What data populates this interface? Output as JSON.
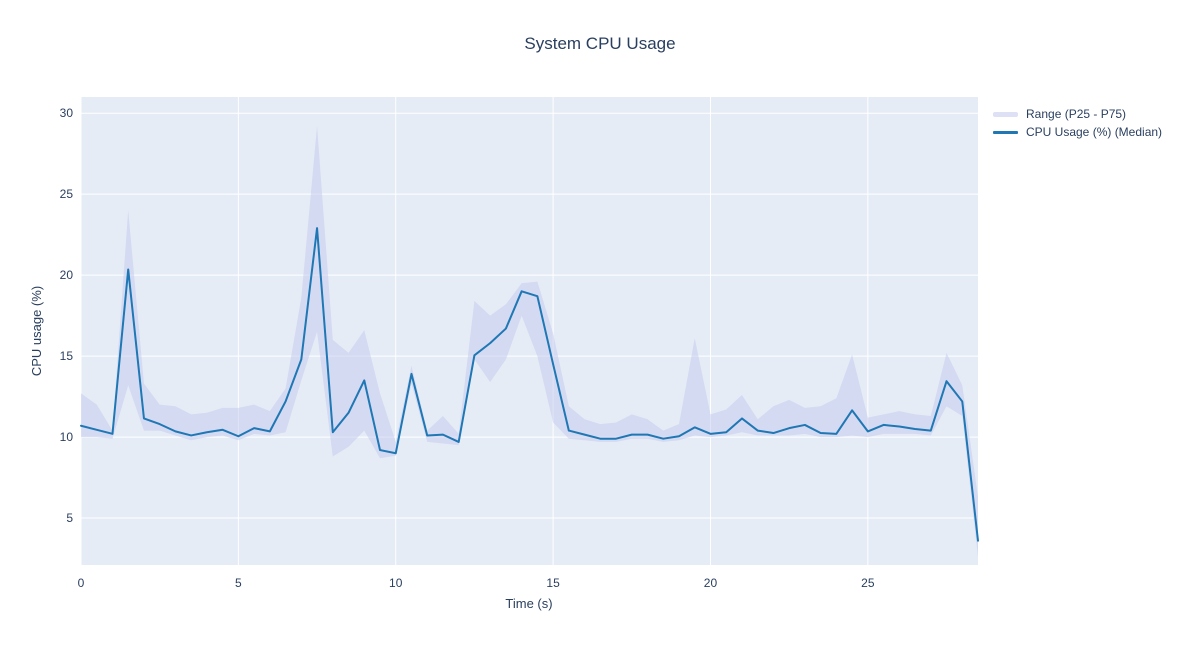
{
  "title": "System CPU Usage",
  "chart_data": {
    "type": "line",
    "title": "System CPU Usage",
    "xlabel": "Time (s)",
    "ylabel": "CPU usage (%)",
    "xlim": [
      0,
      28.5
    ],
    "ylim": [
      2.1,
      31.0
    ],
    "xticks": [
      0,
      5,
      10,
      15,
      20,
      25
    ],
    "yticks": [
      5,
      10,
      15,
      20,
      25,
      30
    ],
    "grid": true,
    "legend_position": "outside-right-top",
    "x": [
      0,
      0.5,
      1,
      1.5,
      2,
      2.5,
      3,
      3.5,
      4,
      4.5,
      5,
      5.5,
      6,
      6.5,
      7,
      7.5,
      8,
      8.5,
      9,
      9.5,
      10,
      10.5,
      11,
      11.5,
      12,
      12.5,
      13,
      13.5,
      14,
      14.5,
      15,
      15.5,
      16,
      16.5,
      17,
      17.5,
      18,
      18.5,
      19,
      19.5,
      20,
      20.5,
      21,
      21.5,
      22,
      22.5,
      23,
      23.5,
      24,
      24.5,
      25,
      25.5,
      26,
      26.5,
      27,
      27.5,
      28,
      28.5
    ],
    "series": [
      {
        "name": "Range (P25 - P75)",
        "type": "band",
        "lower": [
          10.0,
          10.0,
          9.9,
          13.2,
          10.4,
          10.4,
          10.1,
          9.8,
          10.0,
          10.1,
          9.8,
          10.2,
          10.1,
          10.3,
          13.5,
          16.5,
          8.8,
          9.4,
          10.4,
          8.7,
          8.85,
          13.3,
          9.7,
          9.6,
          9.5,
          14.8,
          13.4,
          14.8,
          17.5,
          15.0,
          10.9,
          9.9,
          9.8,
          9.7,
          9.7,
          9.9,
          9.9,
          9.7,
          9.8,
          10.1,
          10.0,
          10.1,
          10.3,
          10.1,
          10.1,
          10.1,
          10.2,
          10.0,
          10.0,
          10.1,
          10.0,
          10.2,
          10.2,
          10.2,
          10.1,
          11.9,
          11.3,
          2.6
        ],
        "upper": [
          12.7,
          12.0,
          10.4,
          24.0,
          13.3,
          12.0,
          11.9,
          11.4,
          11.5,
          11.8,
          11.8,
          12.0,
          11.6,
          13.0,
          18.6,
          29.2,
          16.0,
          15.2,
          16.6,
          12.7,
          9.7,
          14.4,
          10.4,
          11.3,
          10.2,
          18.4,
          17.5,
          18.2,
          19.5,
          19.6,
          16.4,
          11.9,
          11.1,
          10.8,
          10.9,
          11.4,
          11.1,
          10.4,
          10.8,
          16.1,
          11.4,
          11.7,
          12.6,
          11.1,
          11.9,
          12.3,
          11.8,
          11.9,
          12.4,
          15.1,
          11.2,
          11.4,
          11.6,
          11.4,
          11.3,
          15.2,
          13.2,
          6.3
        ]
      },
      {
        "name": "CPU Usage (%) (Median)",
        "type": "line",
        "values": [
          10.7,
          10.45,
          10.2,
          20.35,
          11.15,
          10.8,
          10.35,
          10.1,
          10.3,
          10.45,
          10.05,
          10.55,
          10.35,
          12.2,
          14.8,
          22.9,
          10.3,
          11.5,
          13.5,
          9.2,
          9.0,
          13.9,
          10.1,
          10.15,
          9.7,
          15.05,
          15.8,
          16.7,
          19.0,
          18.7,
          14.5,
          10.4,
          10.15,
          9.9,
          9.9,
          10.15,
          10.15,
          9.9,
          10.05,
          10.6,
          10.2,
          10.3,
          11.15,
          10.4,
          10.25,
          10.55,
          10.75,
          10.25,
          10.2,
          11.65,
          10.35,
          10.75,
          10.65,
          10.5,
          10.4,
          13.45,
          12.2,
          3.6
        ]
      }
    ],
    "colors": {
      "line": "#1f77b4",
      "band_fill": "#c3c8ee",
      "plot_bg": "#e5ecf6",
      "grid": "#ffffff",
      "text": "#2a3f5f"
    }
  }
}
